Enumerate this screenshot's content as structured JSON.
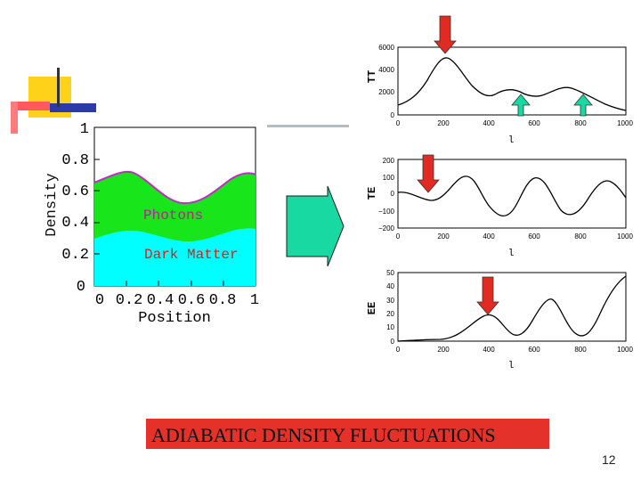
{
  "slide": {
    "page_number": "12",
    "banner_text": "ADIABATIC DENSITY FLUCTUATIONS"
  },
  "density_plot": {
    "ylabel": "Density",
    "xlabel": "Position",
    "y_ticks": [
      "1",
      "0.8",
      "0.6",
      "0.4",
      "0.2",
      "0"
    ],
    "x_ticks": [
      "0",
      "0.2",
      "0.4",
      "0.6",
      "0.8",
      "1"
    ],
    "photons_label": "Photons",
    "dark_matter_label": "Dark Matter",
    "colors": {
      "photons": "#19e61a",
      "dark_matter": "#00ffff",
      "photon_edge": "#c02bc7",
      "label_photons": "#c21a9a",
      "label_dm": "#d42020"
    }
  },
  "spectra": [
    {
      "ylabel": "TT",
      "xlabel": "l",
      "y_ticks": [
        "6000",
        "4000",
        "2000",
        "0"
      ],
      "x_ticks": [
        "0",
        "200",
        "400",
        "600",
        "800",
        "1000"
      ]
    },
    {
      "ylabel": "TE",
      "xlabel": "l",
      "y_ticks": [
        "200",
        "100",
        "0",
        "−100",
        "−200"
      ],
      "x_ticks": [
        "0",
        "200",
        "400",
        "600",
        "800",
        "1000"
      ]
    },
    {
      "ylabel": "EE",
      "xlabel": "l",
      "y_ticks": [
        "50",
        "40",
        "30",
        "20",
        "10",
        "0"
      ],
      "x_ticks": [
        "0",
        "200",
        "400",
        "600",
        "800",
        "1000"
      ]
    }
  ],
  "colors": {
    "banner": "#e4312a",
    "arrow_red": "#e02a22",
    "arrow_green": "#19d9a3",
    "big_arrow": "#19d9a3"
  }
}
